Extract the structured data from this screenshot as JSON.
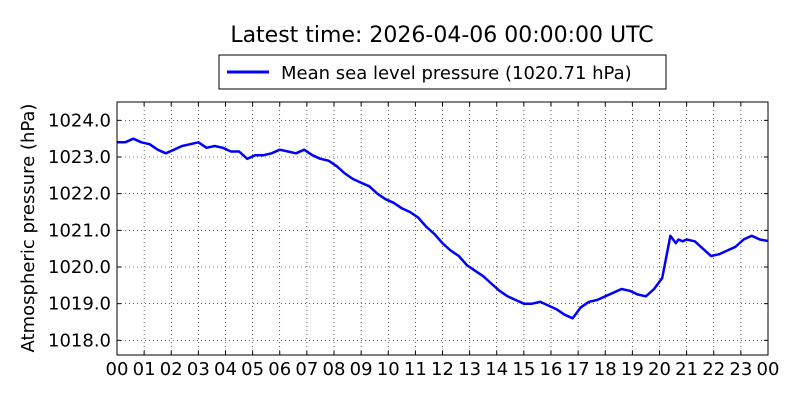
{
  "chart_data": {
    "type": "line",
    "title": "Latest time: 2026-04-06 00:00:00 UTC",
    "xlabel": "",
    "ylabel": "Atmospheric pressure (hPa)",
    "xlim": [
      0,
      24
    ],
    "ylim": [
      1017.6,
      1024.5
    ],
    "x_tick_labels": [
      "00",
      "01",
      "02",
      "03",
      "04",
      "05",
      "06",
      "07",
      "08",
      "09",
      "10",
      "11",
      "12",
      "13",
      "14",
      "15",
      "16",
      "17",
      "18",
      "19",
      "20",
      "21",
      "22",
      "23",
      "00"
    ],
    "y_ticks": [
      1018.0,
      1019.0,
      1020.0,
      1021.0,
      1022.0,
      1023.0,
      1024.0
    ],
    "y_tick_labels": [
      "1018.0",
      "1019.0",
      "1020.0",
      "1021.0",
      "1022.0",
      "1023.0",
      "1024.0"
    ],
    "grid": true,
    "legend_position": "top-center",
    "series": [
      {
        "name": "Mean sea level pressure (1020.71 hPa)",
        "color": "#0000ff",
        "x": [
          0,
          0.3,
          0.6,
          0.9,
          1.2,
          1.5,
          1.8,
          2.1,
          2.4,
          2.7,
          3.0,
          3.3,
          3.6,
          3.9,
          4.2,
          4.5,
          4.8,
          5.1,
          5.4,
          5.7,
          6.0,
          6.3,
          6.6,
          6.9,
          7.2,
          7.5,
          7.8,
          8.1,
          8.4,
          8.7,
          9.0,
          9.3,
          9.6,
          9.9,
          10.2,
          10.5,
          10.8,
          11.1,
          11.4,
          11.7,
          12.0,
          12.3,
          12.6,
          12.9,
          13.2,
          13.5,
          13.8,
          14.1,
          14.4,
          14.7,
          15.0,
          15.3,
          15.6,
          15.9,
          16.2,
          16.5,
          16.8,
          17.1,
          17.4,
          17.7,
          18.0,
          18.3,
          18.6,
          18.9,
          19.2,
          19.5,
          19.8,
          20.1,
          20.4,
          20.6,
          20.7,
          20.85,
          21.0,
          21.3,
          21.6,
          21.9,
          22.2,
          22.5,
          22.8,
          23.1,
          23.4,
          23.7,
          24.0
        ],
        "y": [
          1023.4,
          1023.4,
          1023.5,
          1023.4,
          1023.35,
          1023.2,
          1023.1,
          1023.2,
          1023.3,
          1023.35,
          1023.4,
          1023.25,
          1023.3,
          1023.25,
          1023.15,
          1023.15,
          1022.95,
          1023.05,
          1023.05,
          1023.1,
          1023.2,
          1023.15,
          1023.1,
          1023.2,
          1023.05,
          1022.95,
          1022.9,
          1022.75,
          1022.55,
          1022.4,
          1022.3,
          1022.2,
          1022.0,
          1021.85,
          1021.75,
          1021.6,
          1021.5,
          1021.35,
          1021.1,
          1020.9,
          1020.65,
          1020.45,
          1020.3,
          1020.05,
          1019.9,
          1019.75,
          1019.55,
          1019.35,
          1019.2,
          1019.1,
          1019.0,
          1019.0,
          1019.05,
          1018.95,
          1018.85,
          1018.7,
          1018.6,
          1018.9,
          1019.05,
          1019.1,
          1019.2,
          1019.3,
          1019.4,
          1019.35,
          1019.25,
          1019.2,
          1019.4,
          1019.7,
          1020.85,
          1020.65,
          1020.75,
          1020.7,
          1020.75,
          1020.7,
          1020.5,
          1020.3,
          1020.35,
          1020.45,
          1020.55,
          1020.75,
          1020.85,
          1020.75,
          1020.71
        ]
      }
    ]
  }
}
